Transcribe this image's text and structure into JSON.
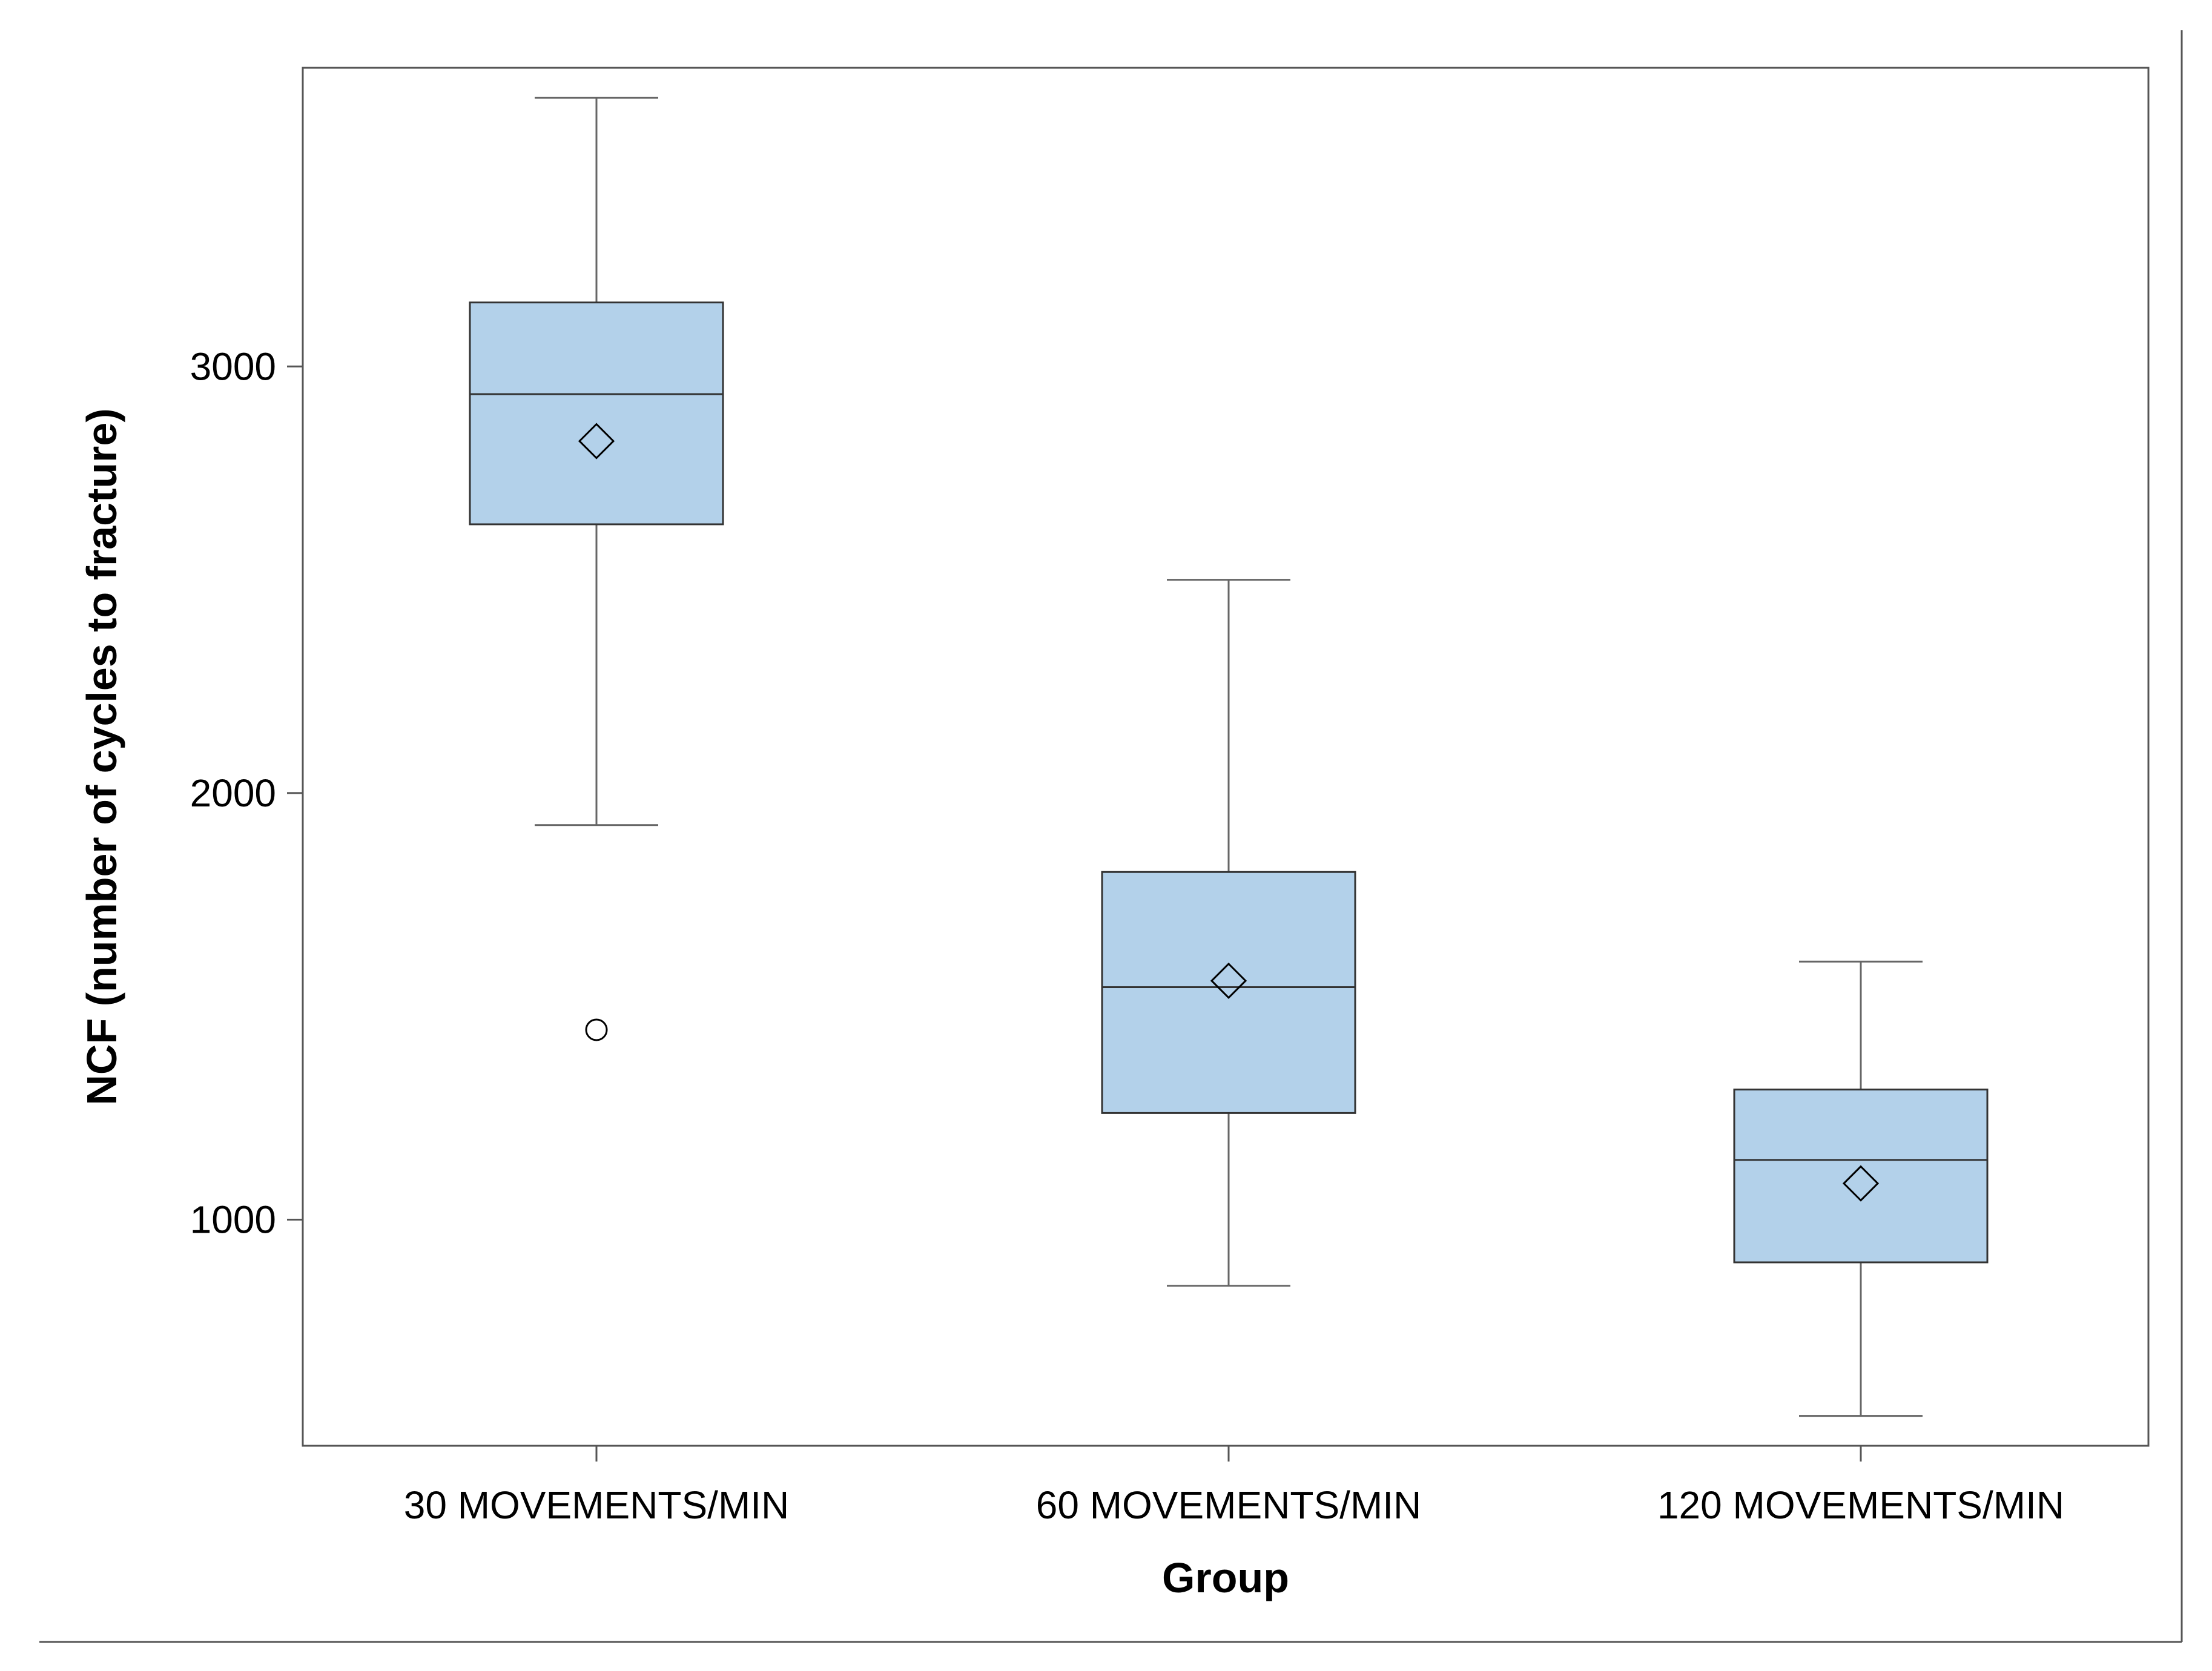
{
  "chart_data": {
    "type": "box",
    "title": "",
    "xlabel": "Group",
    "ylabel": "NCF (number of cycles to fracture)",
    "ylim": [
      470,
      3700
    ],
    "yticks": [
      1000,
      2000,
      3000
    ],
    "categories": [
      "30 MOVEMENTS/MIN",
      "60 MOVEMENTS/MIN",
      "120 MOVEMENTS/MIN"
    ],
    "boxes": [
      {
        "category": "30 MOVEMENTS/MIN",
        "whisker_low": 1925,
        "q1": 2630,
        "median": 2935,
        "q3": 3150,
        "whisker_high": 3630,
        "mean": 2825,
        "outliers": [
          1445
        ]
      },
      {
        "category": "60 MOVEMENTS/MIN",
        "whisker_low": 845,
        "q1": 1250,
        "median": 1545,
        "q3": 1815,
        "whisker_high": 2500,
        "mean": 1560,
        "outliers": []
      },
      {
        "category": "120 MOVEMENTS/MIN",
        "whisker_low": 540,
        "q1": 900,
        "median": 1140,
        "q3": 1305,
        "whisker_high": 1605,
        "mean": 1085,
        "outliers": []
      }
    ],
    "colors": {
      "box_fill": "#b3d1ea",
      "box_stroke": "#333333",
      "whisker": "#666666",
      "frame": "#555555"
    },
    "grid": false,
    "legend": "none"
  }
}
